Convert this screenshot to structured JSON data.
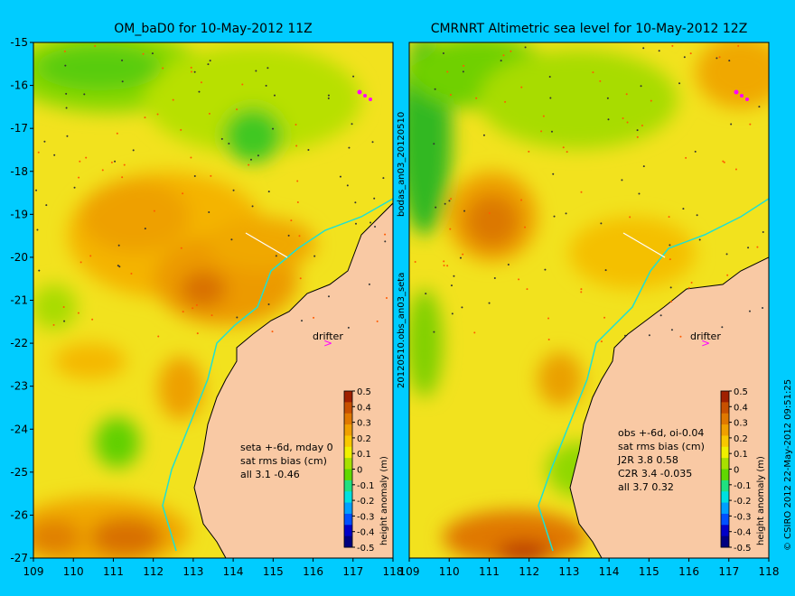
{
  "figure": {
    "background": "#00ccff",
    "land_color": "#f9c9a4",
    "ocean_base": "#f2e21e",
    "left_panel": {
      "title": "OM_baD0 for 10-May-2012 11Z",
      "drifter_label": "drifter",
      "stats_lines": [
        "seta +-6d, mday 0",
        "sat rms bias (cm)",
        "all 3.1 -0.46"
      ]
    },
    "right_panel": {
      "title": "CMRNRT Altimetric sea level  for 10-May-2012 12Z",
      "drifter_label": "drifter",
      "stats_lines": [
        "obs +-6d, oi-0.04",
        "sat rms bias (cm)",
        "J2R   3.8 0.58",
        "C2R   3.4 -0.035",
        "all 3.7 0.32"
      ]
    },
    "lat_ticks": [
      "-15",
      "-16",
      "-17",
      "-18",
      "-19",
      "-20",
      "-21",
      "-22",
      "-23",
      "-24",
      "-25",
      "-26",
      "-27"
    ],
    "lon_ticks_left": [
      "109",
      "110",
      "111",
      "112",
      "113",
      "114",
      "115",
      "116",
      "117",
      "118"
    ],
    "lon_ticks_right": [
      "109",
      "110",
      "111",
      "112",
      "113",
      "114",
      "115",
      "116",
      "117",
      "118"
    ],
    "vertical_label_top": "bodas_an03_20120510",
    "vertical_label_bottom": "20120510.obs_an03_seta",
    "colorbar": {
      "label": "height anomaly (m)",
      "ticks": [
        "0.5",
        "0.4",
        "0.3",
        "0.2",
        "0.1",
        "0",
        "-0.1",
        "-0.2",
        "-0.3",
        "-0.4",
        "-0.5"
      ],
      "colors": [
        "#000080",
        "#0000c8",
        "#0050ff",
        "#00a0ff",
        "#00e0e0",
        "#20e080",
        "#60d800",
        "#a8e000",
        "#f0f000",
        "#f8c800",
        "#f0a000",
        "#e07800",
        "#c85000",
        "#a02000"
      ]
    },
    "copyright": "© CSIRO 2012  22-May-2012 09:51:25"
  }
}
